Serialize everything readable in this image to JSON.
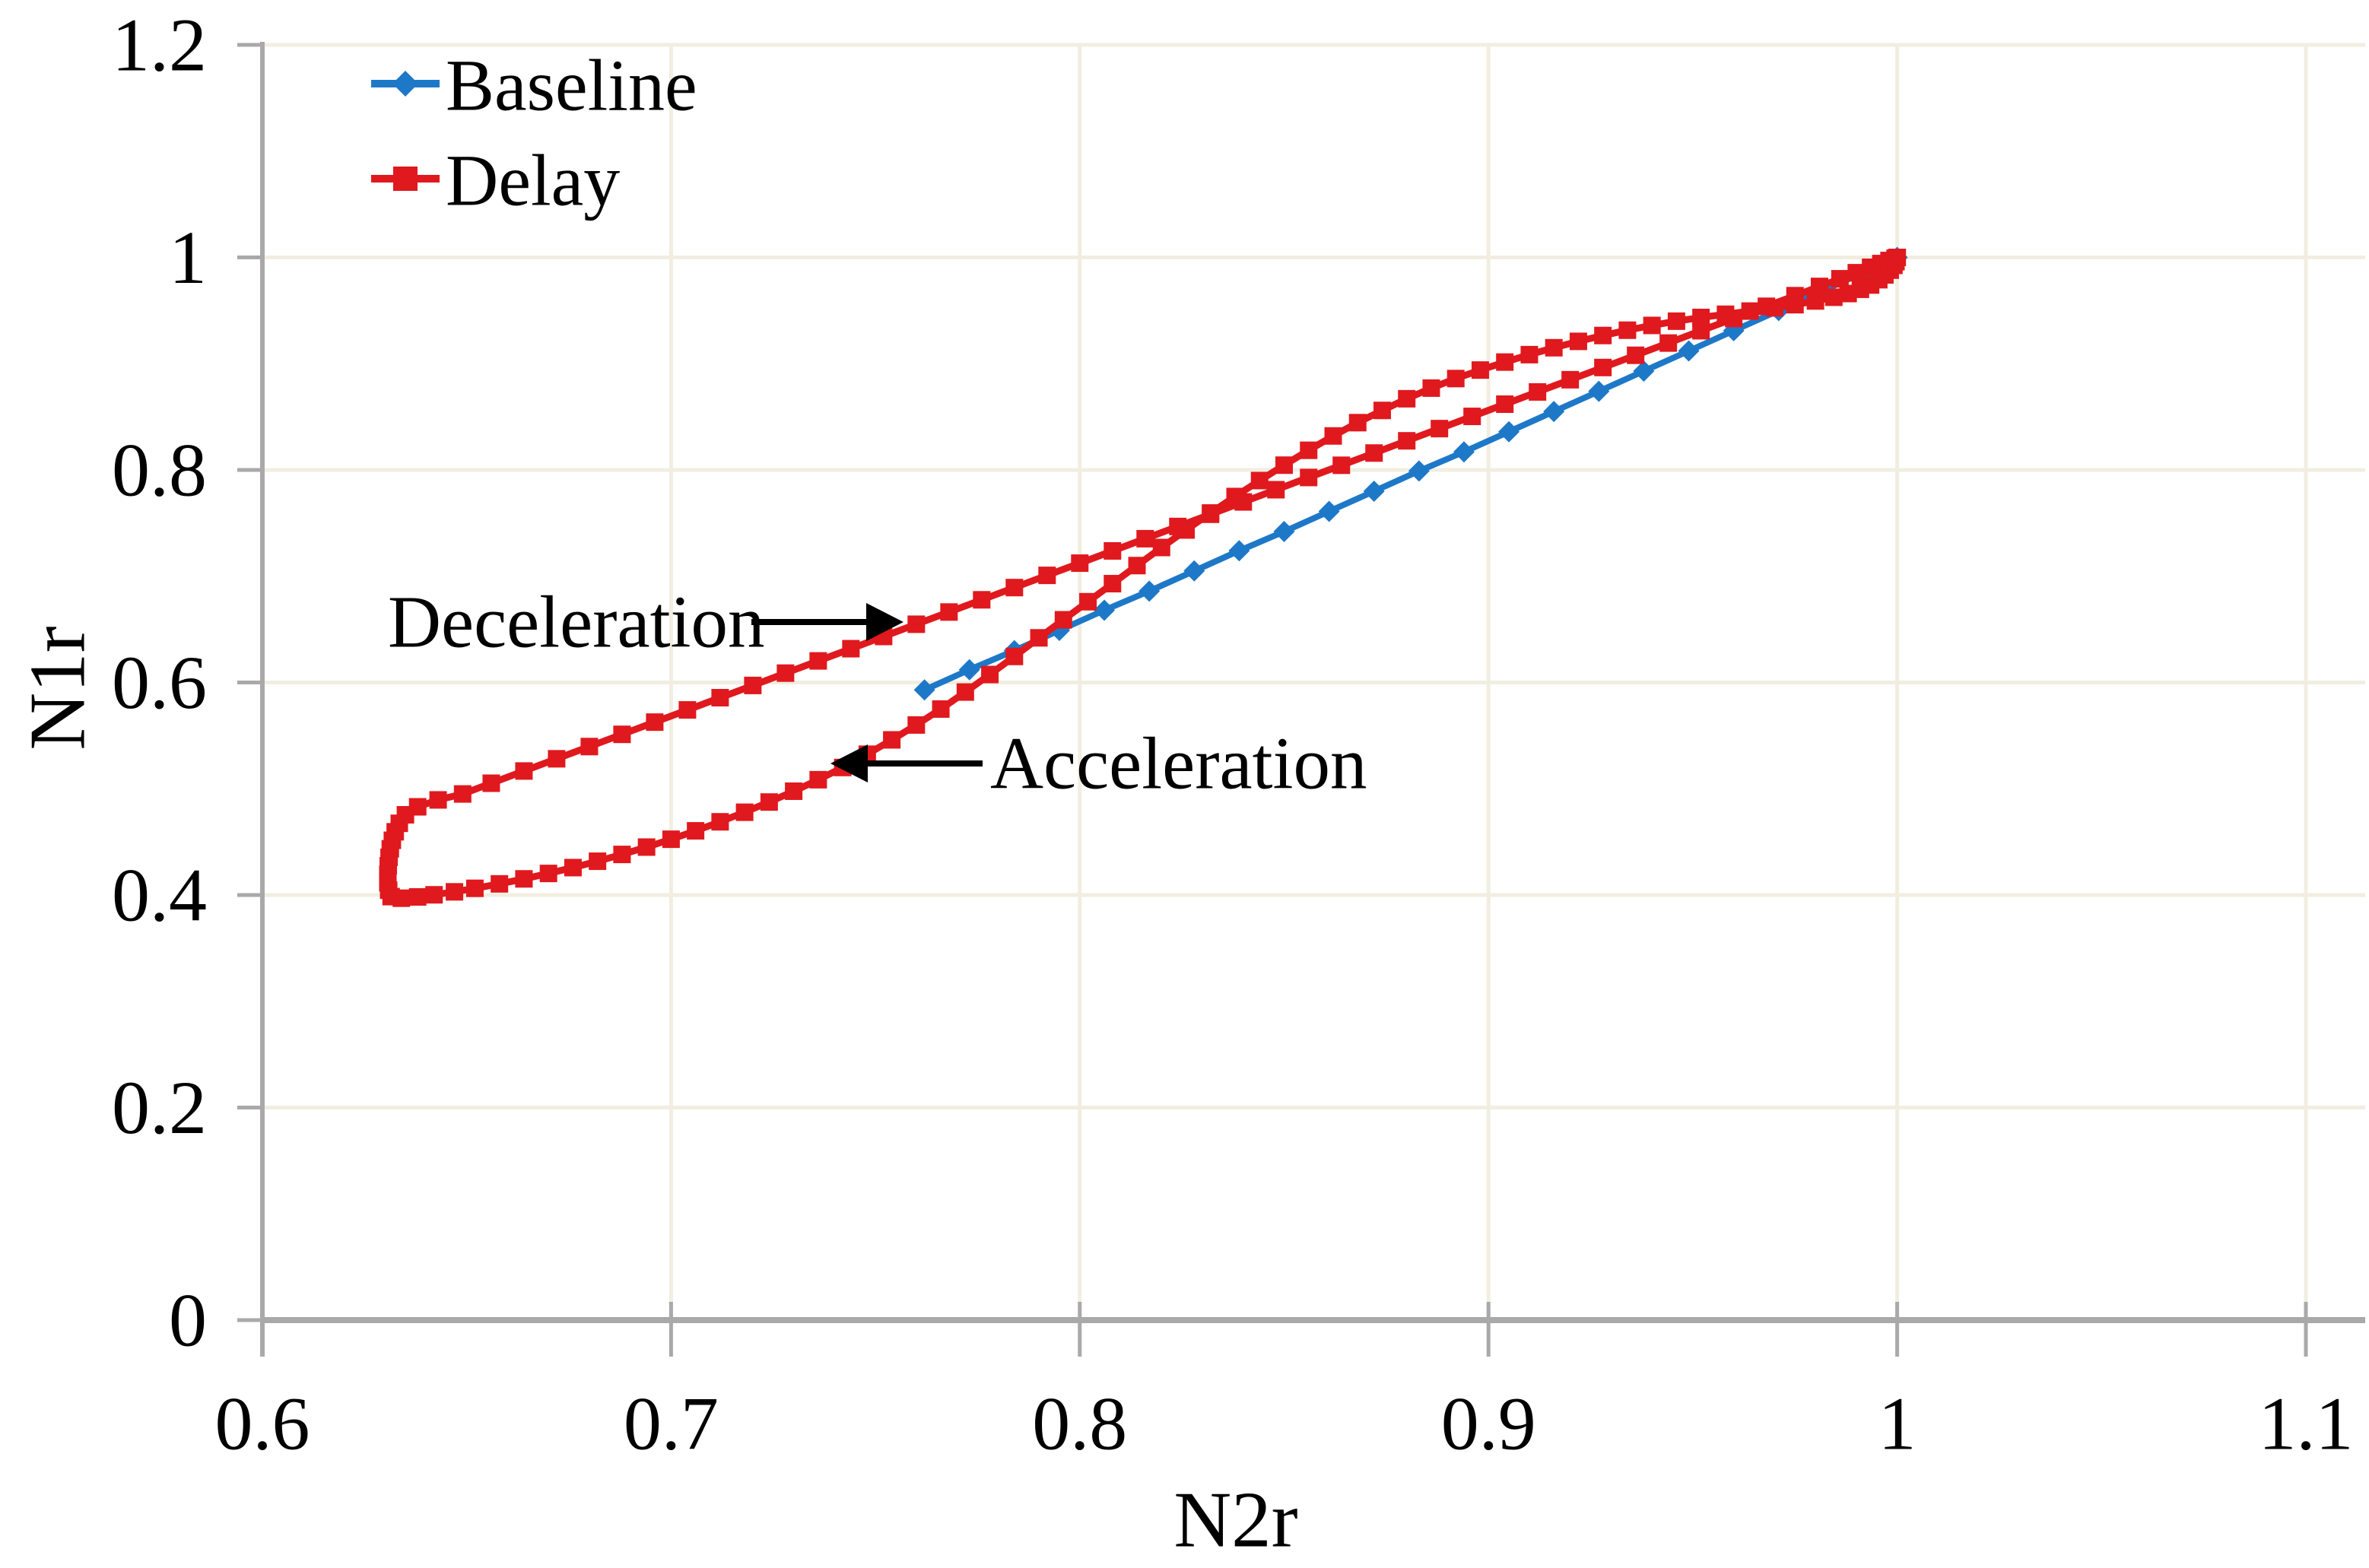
{
  "chart_data": {
    "type": "line",
    "title": "",
    "xlabel": "N2r",
    "ylabel": "N1r",
    "xlim": [
      0.6,
      1.1
    ],
    "ylim": [
      0,
      1.2
    ],
    "grid": true,
    "grid_color": "#f1eee1",
    "axis_color": "#a9a9a9",
    "background": "#ffffff",
    "legend_position": "top-left",
    "xtick_values": [
      0.6,
      0.7,
      0.8,
      0.9,
      1.0,
      1.1
    ],
    "xtick_labels": [
      "0.6",
      "0.7",
      "0.8",
      "0.9",
      "1",
      "1.1"
    ],
    "ytick_values": [
      0,
      0.2,
      0.4,
      0.6,
      0.8,
      1.0,
      1.2
    ],
    "ytick_labels": [
      "0",
      "0.2",
      "0.4",
      "0.6",
      "0.8",
      "1",
      "1.2"
    ],
    "series": [
      {
        "name": "Baseline",
        "color": "#1e78c8",
        "marker": "diamond",
        "points": [
          [
            0.762,
            0.593
          ],
          [
            0.773,
            0.612
          ],
          [
            0.784,
            0.63
          ],
          [
            0.795,
            0.649
          ],
          [
            0.806,
            0.668
          ],
          [
            0.817,
            0.686
          ],
          [
            0.828,
            0.705
          ],
          [
            0.839,
            0.724
          ],
          [
            0.85,
            0.742
          ],
          [
            0.861,
            0.761
          ],
          [
            0.872,
            0.78
          ],
          [
            0.883,
            0.799
          ],
          [
            0.894,
            0.817
          ],
          [
            0.905,
            0.836
          ],
          [
            0.916,
            0.855
          ],
          [
            0.927,
            0.874
          ],
          [
            0.938,
            0.893
          ],
          [
            0.949,
            0.912
          ],
          [
            0.96,
            0.931
          ],
          [
            0.971,
            0.95
          ],
          [
            0.982,
            0.969
          ],
          [
            0.993,
            0.988
          ],
          [
            1.0,
            1.0
          ]
        ]
      },
      {
        "name": "Delay",
        "color": "#e0191e",
        "marker": "square",
        "points": [
          [
            1.0,
            1.0
          ],
          [
            0.9995,
            0.9993
          ],
          [
            0.998,
            0.9971
          ],
          [
            0.996,
            0.9942
          ],
          [
            0.9935,
            0.9907
          ],
          [
            0.99,
            0.9856
          ],
          [
            0.986,
            0.9799
          ],
          [
            0.981,
            0.9727
          ],
          [
            0.975,
            0.964
          ],
          [
            0.968,
            0.954
          ],
          [
            0.96,
            0.9425
          ],
          [
            0.952,
            0.931
          ],
          [
            0.944,
            0.9194
          ],
          [
            0.936,
            0.9079
          ],
          [
            0.928,
            0.8964
          ],
          [
            0.92,
            0.8849
          ],
          [
            0.912,
            0.8734
          ],
          [
            0.904,
            0.8619
          ],
          [
            0.896,
            0.8504
          ],
          [
            0.888,
            0.8389
          ],
          [
            0.88,
            0.8274
          ],
          [
            0.872,
            0.8159
          ],
          [
            0.864,
            0.8044
          ],
          [
            0.856,
            0.7929
          ],
          [
            0.848,
            0.7814
          ],
          [
            0.84,
            0.7699
          ],
          [
            0.832,
            0.7583
          ],
          [
            0.824,
            0.7468
          ],
          [
            0.816,
            0.7353
          ],
          [
            0.808,
            0.7238
          ],
          [
            0.8,
            0.7123
          ],
          [
            0.792,
            0.7008
          ],
          [
            0.784,
            0.6893
          ],
          [
            0.776,
            0.6778
          ],
          [
            0.768,
            0.6663
          ],
          [
            0.76,
            0.6548
          ],
          [
            0.752,
            0.6433
          ],
          [
            0.744,
            0.6318
          ],
          [
            0.736,
            0.6203
          ],
          [
            0.728,
            0.6088
          ],
          [
            0.72,
            0.5972
          ],
          [
            0.712,
            0.5857
          ],
          [
            0.704,
            0.5742
          ],
          [
            0.696,
            0.5627
          ],
          [
            0.688,
            0.5512
          ],
          [
            0.68,
            0.5397
          ],
          [
            0.672,
            0.5282
          ],
          [
            0.664,
            0.5167
          ],
          [
            0.656,
            0.5052
          ],
          [
            0.649,
            0.4951
          ],
          [
            0.643,
            0.4895
          ],
          [
            0.638,
            0.483
          ],
          [
            0.635,
            0.4755
          ],
          [
            0.6335,
            0.4675
          ],
          [
            0.6325,
            0.4595
          ],
          [
            0.6318,
            0.4515
          ],
          [
            0.6313,
            0.4435
          ],
          [
            0.631,
            0.4355
          ],
          [
            0.6308,
            0.4275
          ],
          [
            0.6307,
            0.4195
          ],
          [
            0.6307,
            0.4115
          ],
          [
            0.6309,
            0.4045
          ],
          [
            0.6315,
            0.3985
          ],
          [
            0.634,
            0.397
          ],
          [
            0.638,
            0.3982
          ],
          [
            0.642,
            0.4002
          ],
          [
            0.647,
            0.403
          ],
          [
            0.652,
            0.4063
          ],
          [
            0.658,
            0.4105
          ],
          [
            0.664,
            0.4152
          ],
          [
            0.67,
            0.4203
          ],
          [
            0.676,
            0.4258
          ],
          [
            0.682,
            0.4318
          ],
          [
            0.688,
            0.4382
          ],
          [
            0.694,
            0.4451
          ],
          [
            0.7,
            0.4525
          ],
          [
            0.706,
            0.4604
          ],
          [
            0.712,
            0.4689
          ],
          [
            0.718,
            0.4779
          ],
          [
            0.724,
            0.4875
          ],
          [
            0.73,
            0.4977
          ],
          [
            0.736,
            0.5085
          ],
          [
            0.742,
            0.52
          ],
          [
            0.748,
            0.5325
          ],
          [
            0.754,
            0.546
          ],
          [
            0.76,
            0.56
          ],
          [
            0.766,
            0.575
          ],
          [
            0.772,
            0.591
          ],
          [
            0.778,
            0.6075
          ],
          [
            0.784,
            0.6245
          ],
          [
            0.79,
            0.642
          ],
          [
            0.796,
            0.659
          ],
          [
            0.802,
            0.676
          ],
          [
            0.808,
            0.693
          ],
          [
            0.814,
            0.71
          ],
          [
            0.82,
            0.727
          ],
          [
            0.826,
            0.7435
          ],
          [
            0.832,
            0.7595
          ],
          [
            0.838,
            0.775
          ],
          [
            0.844,
            0.79
          ],
          [
            0.85,
            0.8045
          ],
          [
            0.856,
            0.8185
          ],
          [
            0.862,
            0.832
          ],
          [
            0.868,
            0.8445
          ],
          [
            0.874,
            0.856
          ],
          [
            0.88,
            0.867
          ],
          [
            0.886,
            0.877
          ],
          [
            0.892,
            0.886
          ],
          [
            0.898,
            0.894
          ],
          [
            0.904,
            0.9015
          ],
          [
            0.91,
            0.9085
          ],
          [
            0.916,
            0.915
          ],
          [
            0.922,
            0.921
          ],
          [
            0.928,
            0.9265
          ],
          [
            0.934,
            0.9315
          ],
          [
            0.94,
            0.936
          ],
          [
            0.946,
            0.94
          ],
          [
            0.952,
            0.9435
          ],
          [
            0.958,
            0.9465
          ],
          [
            0.964,
            0.9495
          ],
          [
            0.97,
            0.9525
          ],
          [
            0.975,
            0.9555
          ],
          [
            0.98,
            0.959
          ],
          [
            0.9845,
            0.9625
          ],
          [
            0.988,
            0.966
          ],
          [
            0.991,
            0.97
          ],
          [
            0.9935,
            0.974
          ],
          [
            0.9955,
            0.979
          ],
          [
            0.997,
            0.9835
          ],
          [
            0.9983,
            0.988
          ],
          [
            0.9992,
            0.9925
          ],
          [
            0.9997,
            0.996
          ],
          [
            1.0,
            1.0
          ]
        ]
      }
    ],
    "annotations": [
      {
        "text": "Deceleration",
        "arrow_direction": "right",
        "target": [
          0.756,
          0.657
        ]
      },
      {
        "text": "Acceleration",
        "arrow_direction": "left",
        "target": [
          0.74,
          0.5
        ]
      }
    ],
    "legend": {
      "items": [
        {
          "label": "Baseline",
          "color": "#1e78c8",
          "marker": "diamond"
        },
        {
          "label": "Delay",
          "color": "#e0191e",
          "marker": "square"
        }
      ]
    }
  }
}
